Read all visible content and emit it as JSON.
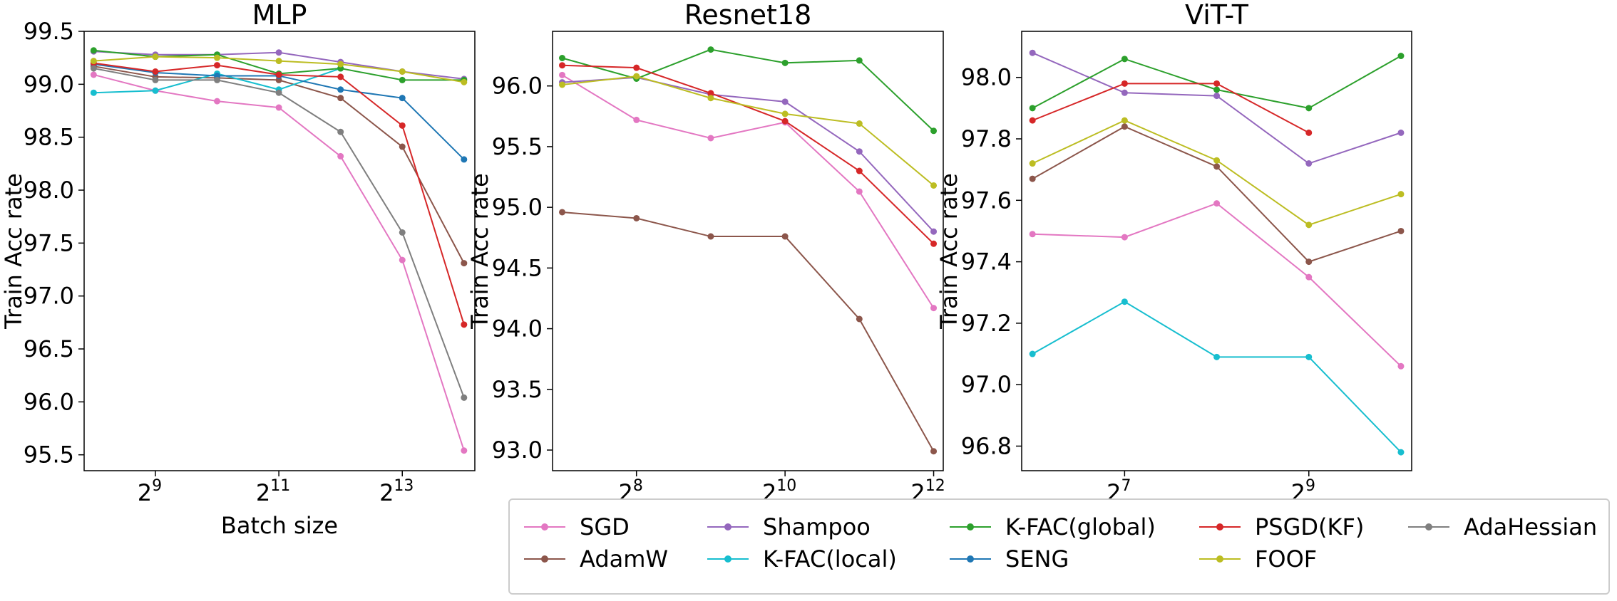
{
  "colors": {
    "SGD": "#e377c2",
    "AdamW": "#8c564b",
    "Shampoo": "#9467bd",
    "K-FAC(local)": "#17becf",
    "K-FAC(global)": "#2ca02c",
    "SENG": "#1f77b4",
    "PSGD(KF)": "#d62728",
    "FOOF": "#bcbd22",
    "AdaHessian": "#7f7f7f"
  },
  "legend": {
    "entries": [
      "SGD",
      "AdamW",
      "Shampoo",
      "K-FAC(local)",
      "K-FAC(global)",
      "SENG",
      "PSGD(KF)",
      "FOOF",
      "AdaHessian"
    ]
  },
  "chart_data": [
    {
      "type": "line",
      "title": "MLP",
      "xlabel": "Batch size",
      "ylabel": "Train Acc rate",
      "x_scale": "log2",
      "x": [
        256,
        512,
        1024,
        2048,
        4096,
        8192,
        16384
      ],
      "xlim": [
        230,
        18500
      ],
      "ylim": [
        95.35,
        99.5
      ],
      "xticks": [
        {
          "value": 512,
          "base": "2",
          "exp": "9"
        },
        {
          "value": 2048,
          "base": "2",
          "exp": "11"
        },
        {
          "value": 8192,
          "base": "2",
          "exp": "13"
        }
      ],
      "yticks": [
        {
          "value": 95.5,
          "label": "95.5"
        },
        {
          "value": 96.0,
          "label": "96.0"
        },
        {
          "value": 96.5,
          "label": "96.5"
        },
        {
          "value": 97.0,
          "label": "97.0"
        },
        {
          "value": 97.5,
          "label": "97.5"
        },
        {
          "value": 98.0,
          "label": "98.0"
        },
        {
          "value": 98.5,
          "label": "98.5"
        },
        {
          "value": 99.0,
          "label": "99.0"
        },
        {
          "value": 99.5,
          "label": "99.5"
        }
      ],
      "series": [
        {
          "name": "SGD",
          "values": [
            99.09,
            98.94,
            98.84,
            98.78,
            98.32,
            97.34,
            95.54
          ]
        },
        {
          "name": "AdamW",
          "values": [
            99.17,
            99.07,
            99.06,
            99.04,
            98.87,
            98.41,
            97.31
          ]
        },
        {
          "name": "Shampoo",
          "values": [
            99.31,
            99.28,
            99.28,
            99.3,
            99.21,
            99.12,
            99.05
          ]
        },
        {
          "name": "K-FAC(local)",
          "values": [
            98.92,
            98.94,
            99.1,
            98.95,
            99.15,
            null,
            null
          ]
        },
        {
          "name": "K-FAC(global)",
          "values": [
            99.32,
            99.26,
            99.28,
            99.1,
            99.15,
            99.04,
            99.04
          ]
        },
        {
          "name": "SENG",
          "values": [
            99.19,
            99.11,
            99.08,
            99.08,
            98.95,
            98.87,
            98.29
          ]
        },
        {
          "name": "PSGD(KF)",
          "values": [
            99.2,
            99.12,
            99.18,
            99.09,
            99.07,
            98.61,
            96.73
          ]
        },
        {
          "name": "FOOF",
          "values": [
            99.22,
            99.26,
            99.25,
            99.22,
            99.19,
            99.12,
            99.02
          ]
        },
        {
          "name": "AdaHessian",
          "values": [
            99.15,
            99.04,
            99.04,
            98.92,
            98.55,
            97.6,
            96.04
          ]
        }
      ]
    },
    {
      "type": "line",
      "title": "Resnet18",
      "xlabel": "Batch size",
      "ylabel": "Train Acc rate",
      "x_scale": "log2",
      "x": [
        128,
        256,
        512,
        1024,
        2048,
        4096
      ],
      "xlim": [
        117,
        4480
      ],
      "ylim": [
        92.83,
        96.45
      ],
      "xticks": [
        {
          "value": 256,
          "base": "2",
          "exp": "8"
        },
        {
          "value": 1024,
          "base": "2",
          "exp": "10"
        },
        {
          "value": 4096,
          "base": "2",
          "exp": "12"
        }
      ],
      "yticks": [
        {
          "value": 93.0,
          "label": "93.0"
        },
        {
          "value": 93.5,
          "label": "93.5"
        },
        {
          "value": 94.0,
          "label": "94.0"
        },
        {
          "value": 94.5,
          "label": "94.5"
        },
        {
          "value": 95.0,
          "label": "95.0"
        },
        {
          "value": 95.5,
          "label": "95.5"
        },
        {
          "value": 96.0,
          "label": "96.0"
        }
      ],
      "series": [
        {
          "name": "SGD",
          "values": [
            96.09,
            95.72,
            95.57,
            95.7,
            95.13,
            94.17
          ]
        },
        {
          "name": "AdamW",
          "values": [
            94.96,
            94.91,
            94.76,
            94.76,
            94.08,
            92.99
          ]
        },
        {
          "name": "Shampoo",
          "values": [
            96.03,
            96.07,
            95.93,
            95.87,
            95.46,
            94.8
          ]
        },
        {
          "name": "K-FAC(global)",
          "values": [
            96.23,
            96.06,
            96.3,
            96.19,
            96.21,
            95.63
          ]
        },
        {
          "name": "PSGD(KF)",
          "values": [
            96.17,
            96.15,
            95.94,
            95.71,
            95.3,
            94.7
          ]
        },
        {
          "name": "FOOF",
          "values": [
            96.01,
            96.08,
            95.9,
            95.77,
            95.69,
            95.18
          ]
        }
      ]
    },
    {
      "type": "line",
      "title": "ViT-T",
      "xlabel": "Batch size",
      "ylabel": "Train Acc rate",
      "x_scale": "log2",
      "x": [
        64,
        128,
        256,
        512,
        1024
      ],
      "xlim": [
        59,
        1110
      ],
      "ylim": [
        96.72,
        98.15
      ],
      "xticks": [
        {
          "value": 128,
          "base": "2",
          "exp": "7"
        },
        {
          "value": 512,
          "base": "2",
          "exp": "9"
        }
      ],
      "yticks": [
        {
          "value": 96.8,
          "label": "96.8"
        },
        {
          "value": 97.0,
          "label": "97.0"
        },
        {
          "value": 97.2,
          "label": "97.2"
        },
        {
          "value": 97.4,
          "label": "97.4"
        },
        {
          "value": 97.6,
          "label": "97.6"
        },
        {
          "value": 97.8,
          "label": "97.8"
        },
        {
          "value": 98.0,
          "label": "98.0"
        }
      ],
      "series": [
        {
          "name": "SGD",
          "values": [
            97.49,
            97.48,
            97.59,
            97.35,
            97.06
          ]
        },
        {
          "name": "AdamW",
          "values": [
            97.67,
            97.84,
            97.71,
            97.4,
            97.5
          ]
        },
        {
          "name": "Shampoo",
          "values": [
            98.08,
            97.95,
            97.94,
            97.72,
            97.82
          ]
        },
        {
          "name": "K-FAC(local)",
          "values": [
            97.1,
            97.27,
            97.09,
            97.09,
            96.78
          ]
        },
        {
          "name": "K-FAC(global)",
          "values": [
            97.9,
            98.06,
            97.96,
            97.9,
            98.07
          ]
        },
        {
          "name": "PSGD(KF)",
          "values": [
            97.86,
            97.98,
            97.98,
            97.82,
            null
          ]
        },
        {
          "name": "FOOF",
          "values": [
            97.72,
            97.86,
            97.73,
            97.52,
            97.62
          ]
        }
      ]
    }
  ]
}
